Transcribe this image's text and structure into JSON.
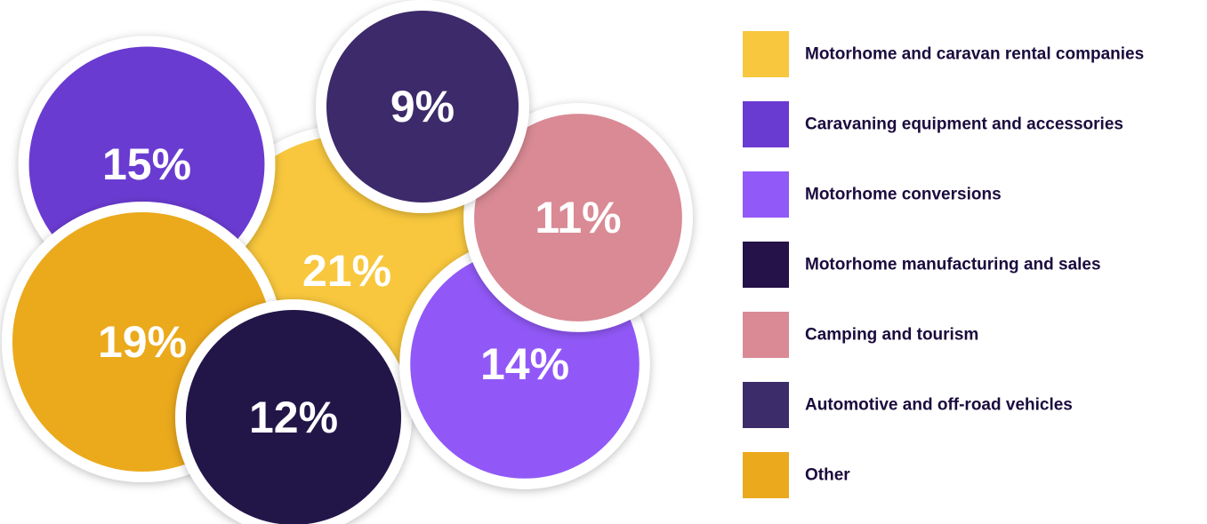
{
  "chart_data": {
    "type": "bubble",
    "categories": [
      "Motorhome and caravan rental companies",
      "Caravaning equipment and accessories",
      "Motorhome conversions",
      "Motorhome manufacturing and sales",
      "Camping and tourism",
      "Automotive and off-road vehicles",
      "Other"
    ],
    "values": [
      21,
      15,
      14,
      12,
      11,
      9,
      19
    ],
    "value_labels": [
      "21%",
      "15%",
      "14%",
      "12%",
      "11%",
      "9%",
      "19%"
    ],
    "colors": [
      "#f8c73d",
      "#6a3bd1",
      "#9159f7",
      "#241248",
      "#d98a94",
      "#3d2c6a",
      "#eba91d"
    ]
  }
}
